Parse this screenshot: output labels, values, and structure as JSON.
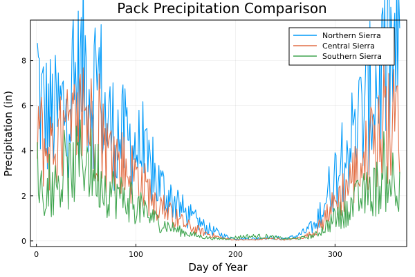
{
  "chart_data": {
    "type": "line",
    "title": "Pack Precipitation Comparison",
    "xlabel": "Day of Year",
    "ylabel": "Precipitation (in)",
    "xlim": [
      -6,
      372
    ],
    "ylim": [
      -0.25,
      9.8
    ],
    "xticks": [
      0,
      100,
      200,
      300
    ],
    "yticks": [
      0,
      2,
      4,
      6,
      8
    ],
    "grid": true,
    "legend_position": "top-right",
    "series_anchors": [
      {
        "name": "Northern Sierra",
        "color": "#009AF9",
        "x": [
          1,
          5,
          10,
          20,
          30,
          40,
          48,
          55,
          62,
          70,
          80,
          90,
          100,
          110,
          120,
          130,
          140,
          150,
          160,
          170,
          180,
          190,
          200,
          210,
          220,
          230,
          240,
          250,
          260,
          270,
          280,
          290,
          300,
          310,
          320,
          330,
          340,
          350,
          360,
          365
        ],
        "y": [
          7.5,
          6.0,
          5.6,
          5.4,
          6.0,
          6.8,
          7.8,
          6.8,
          7.4,
          5.2,
          4.8,
          4.4,
          4.2,
          3.3,
          2.7,
          2.1,
          1.7,
          1.2,
          0.9,
          0.6,
          0.4,
          0.2,
          0.1,
          0.1,
          0.1,
          0.15,
          0.15,
          0.1,
          0.2,
          0.4,
          0.7,
          1.8,
          2.9,
          3.9,
          4.8,
          5.8,
          6.8,
          7.6,
          8.1,
          7.5
        ]
      },
      {
        "name": "Central Sierra",
        "color": "#E26F46",
        "x": [
          1,
          5,
          10,
          20,
          30,
          40,
          48,
          55,
          62,
          70,
          80,
          90,
          100,
          110,
          120,
          130,
          140,
          150,
          160,
          170,
          180,
          190,
          200,
          210,
          220,
          230,
          240,
          250,
          260,
          270,
          280,
          290,
          300,
          310,
          320,
          330,
          340,
          350,
          360,
          365
        ],
        "y": [
          5.5,
          4.5,
          4.0,
          4.2,
          4.6,
          5.1,
          5.9,
          5.2,
          5.2,
          3.9,
          3.7,
          3.2,
          2.9,
          2.3,
          1.8,
          1.3,
          1.0,
          0.7,
          0.5,
          0.35,
          0.2,
          0.1,
          0.05,
          0.05,
          0.05,
          0.1,
          0.1,
          0.05,
          0.1,
          0.2,
          0.4,
          1.0,
          1.7,
          2.3,
          3.0,
          3.6,
          4.3,
          4.9,
          5.3,
          5.6
        ]
      },
      {
        "name": "Southern Sierra",
        "color": "#3EA44E",
        "x": [
          1,
          5,
          10,
          20,
          30,
          40,
          48,
          55,
          62,
          70,
          80,
          90,
          100,
          110,
          120,
          130,
          140,
          150,
          160,
          170,
          180,
          190,
          200,
          210,
          220,
          230,
          240,
          250,
          260,
          270,
          280,
          290,
          300,
          310,
          320,
          330,
          340,
          350,
          360,
          365
        ],
        "y": [
          3.0,
          2.4,
          2.2,
          2.4,
          2.8,
          3.3,
          3.9,
          3.3,
          3.0,
          2.3,
          2.1,
          1.8,
          1.6,
          1.2,
          0.9,
          0.7,
          0.5,
          0.35,
          0.25,
          0.15,
          0.1,
          0.1,
          0.15,
          0.2,
          0.2,
          0.2,
          0.15,
          0.1,
          0.1,
          0.15,
          0.25,
          0.6,
          1.0,
          1.3,
          1.7,
          2.0,
          2.3,
          2.6,
          2.9,
          2.8
        ]
      }
    ]
  }
}
